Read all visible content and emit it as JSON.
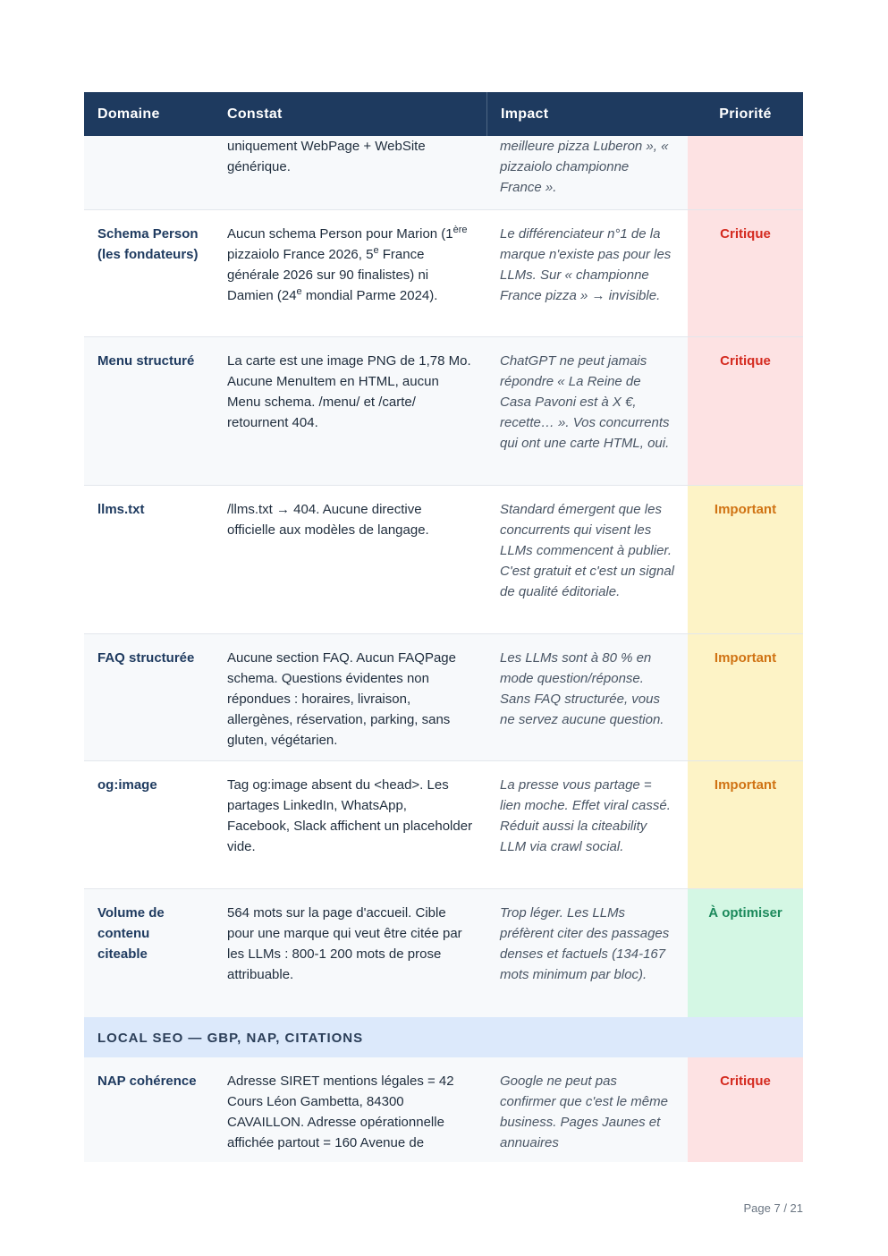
{
  "headers": {
    "domaine": "Domaine",
    "constat": "Constat",
    "impact": "Impact",
    "priorite": "Priorité"
  },
  "rows": [
    {
      "domaine": "",
      "constat": "uniquement WebPage + WebSite générique.",
      "impact": "meilleure pizza Luberon », « pizzaiolo championne France ».",
      "priorite": ""
    },
    {
      "domaine": "Schema Person (les fondateurs)",
      "constat_a": "Aucun schema Person pour Marion (1",
      "constat_sup1": "ère",
      "constat_b": " pizzaiolo France 2026, 5",
      "constat_sup2": "e",
      "constat_c": " France générale 2026 sur 90 finalistes) ni Damien (24",
      "constat_sup3": "e",
      "constat_d": " mondial Parme 2024).",
      "impact": "Le différenciateur n°1 de la marque n'existe pas pour les LLMs. Sur « championne France pizza » → invisible.",
      "priorite": "Critique"
    },
    {
      "domaine": "Menu structuré",
      "constat": "La carte est une image PNG de 1,78 Mo. Aucune MenuItem en HTML, aucun Menu schema. /menu/ et /carte/ retournent 404.",
      "impact": "ChatGPT ne peut jamais répondre « La Reine de Casa Pavoni est à X €, recette… ». Vos concurrents qui ont une carte HTML, oui.",
      "priorite": "Critique"
    },
    {
      "domaine": "llms.txt",
      "constat": "/llms.txt → 404. Aucune directive officielle aux modèles de langage.",
      "impact": "Standard émergent que les concurrents qui visent les LLMs commencent à publier. C'est gratuit et c'est un signal de qualité éditoriale.",
      "priorite": "Important"
    },
    {
      "domaine": "FAQ structurée",
      "constat": "Aucune section FAQ. Aucun FAQPage schema. Questions évidentes non répondues : horaires, livraison, allergènes, réservation, parking, sans gluten, végétarien.",
      "impact": "Les LLMs sont à 80 % en mode question/réponse. Sans FAQ structurée, vous ne servez aucune question.",
      "priorite": "Important"
    },
    {
      "domaine": "og:image",
      "constat": "Tag og:image absent du <head>. Les partages LinkedIn, WhatsApp, Facebook, Slack affichent un placeholder vide.",
      "impact": "La presse vous partage = lien moche. Effet viral cassé. Réduit aussi la citeability LLM via crawl social.",
      "priorite": "Important"
    },
    {
      "domaine": "Volume de contenu citeable",
      "constat": "564 mots sur la page d'accueil. Cible pour une marque qui veut être citée par les LLMs : 800-1 200 mots de prose attribuable.",
      "impact": "Trop léger. Les LLMs préfèrent citer des passages denses et factuels (134-167 mots minimum par bloc).",
      "priorite": "À optimiser"
    },
    {
      "domaine": "NAP cohérence",
      "constat": "Adresse SIRET mentions légales = 42 Cours Léon Gambetta, 84300 CAVAILLON. Adresse opérationnelle affichée partout = 160 Avenue de",
      "impact": "Google ne peut pas confirmer que c'est le même business. Pages Jaunes et annuaires",
      "priorite": "Critique"
    }
  ],
  "section": "LOCAL SEO — GBP, NAP, CITATIONS",
  "page_number": "Page 7 / 21"
}
